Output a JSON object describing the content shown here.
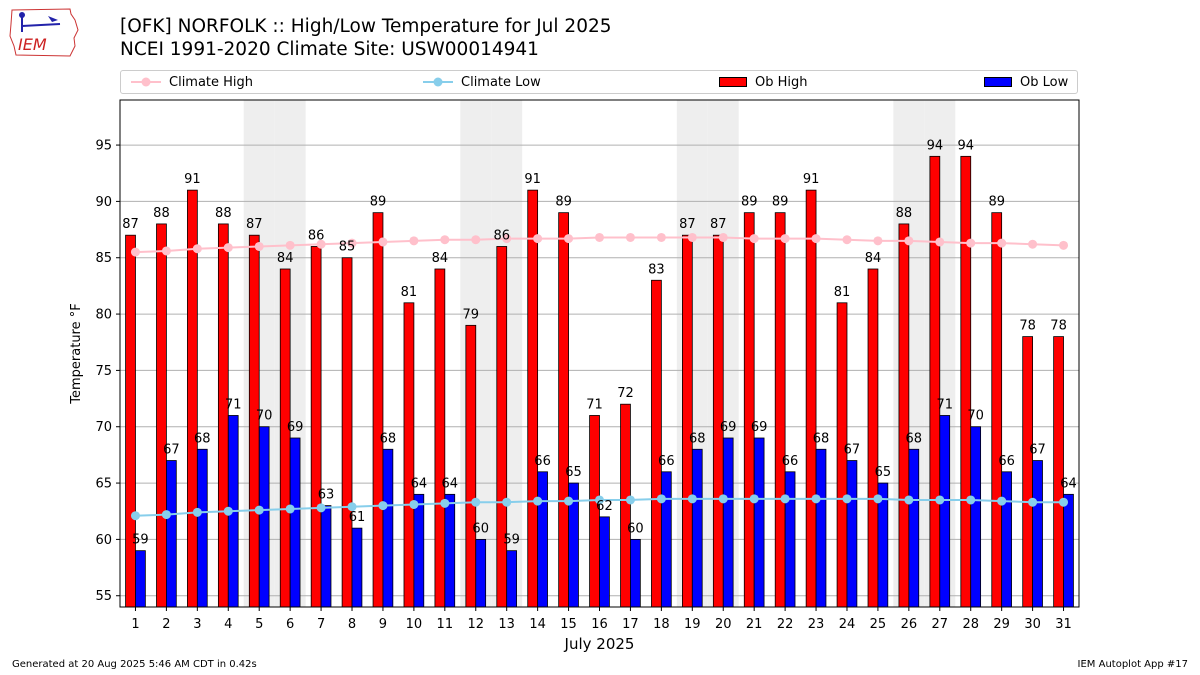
{
  "header": {
    "title_line1": "[OFK] NORFOLK :: High/Low Temperature for Jul 2025",
    "title_line2": "NCEI 1991-2020 Climate Site: USW00014941",
    "logo_text": "IEM"
  },
  "footer": {
    "generated": "Generated at 20 Aug 2025 5:46 AM CDT in 0.42s",
    "app": "IEM Autoplot App #17"
  },
  "legend": {
    "climate_high": "Climate High",
    "climate_low": "Climate Low",
    "ob_high": "Ob High",
    "ob_low": "Ob Low"
  },
  "colors": {
    "ob_high": "#ff0000",
    "ob_low": "#0000ff",
    "climate_high": "#ffc0cb",
    "climate_low": "#87ceeb",
    "weekend_band": "#eeeeee",
    "grid": "#b0b0b0"
  },
  "chart_data": {
    "type": "bar",
    "xlabel": "July 2025",
    "ylabel": "Temperature °F",
    "ylim": [
      54,
      99
    ],
    "yticks": [
      55,
      60,
      65,
      70,
      75,
      80,
      85,
      90,
      95
    ],
    "grid": true,
    "legend_position": "top",
    "categories": [
      "1",
      "2",
      "3",
      "4",
      "5",
      "6",
      "7",
      "8",
      "9",
      "10",
      "11",
      "12",
      "13",
      "14",
      "15",
      "16",
      "17",
      "18",
      "19",
      "20",
      "21",
      "22",
      "23",
      "24",
      "25",
      "26",
      "27",
      "28",
      "29",
      "30",
      "31"
    ],
    "weekend_days": [
      5,
      6,
      12,
      13,
      19,
      20,
      26,
      27
    ],
    "series": [
      {
        "name": "Ob High",
        "kind": "bar",
        "values": [
          87,
          88,
          91,
          88,
          87,
          84,
          86,
          85,
          89,
          81,
          84,
          79,
          86,
          91,
          89,
          71,
          72,
          83,
          87,
          87,
          89,
          89,
          91,
          81,
          84,
          88,
          94,
          94,
          89,
          78,
          78
        ]
      },
      {
        "name": "Ob Low",
        "kind": "bar",
        "values": [
          59,
          67,
          68,
          71,
          70,
          69,
          63,
          61,
          68,
          64,
          64,
          60,
          59,
          66,
          65,
          62,
          60,
          66,
          68,
          69,
          69,
          66,
          68,
          67,
          65,
          68,
          71,
          70,
          66,
          67,
          64
        ]
      },
      {
        "name": "Climate High",
        "kind": "line",
        "values": [
          85.5,
          85.6,
          85.8,
          85.9,
          86.0,
          86.1,
          86.2,
          86.3,
          86.4,
          86.5,
          86.6,
          86.6,
          86.7,
          86.7,
          86.7,
          86.8,
          86.8,
          86.8,
          86.8,
          86.8,
          86.7,
          86.7,
          86.7,
          86.6,
          86.5,
          86.5,
          86.4,
          86.3,
          86.3,
          86.2,
          86.1
        ]
      },
      {
        "name": "Climate Low",
        "kind": "line",
        "values": [
          62.1,
          62.2,
          62.4,
          62.5,
          62.6,
          62.7,
          62.8,
          62.9,
          63.0,
          63.1,
          63.2,
          63.3,
          63.3,
          63.4,
          63.4,
          63.5,
          63.5,
          63.6,
          63.6,
          63.6,
          63.6,
          63.6,
          63.6,
          63.6,
          63.6,
          63.5,
          63.5,
          63.5,
          63.4,
          63.3,
          63.3
        ]
      }
    ]
  }
}
